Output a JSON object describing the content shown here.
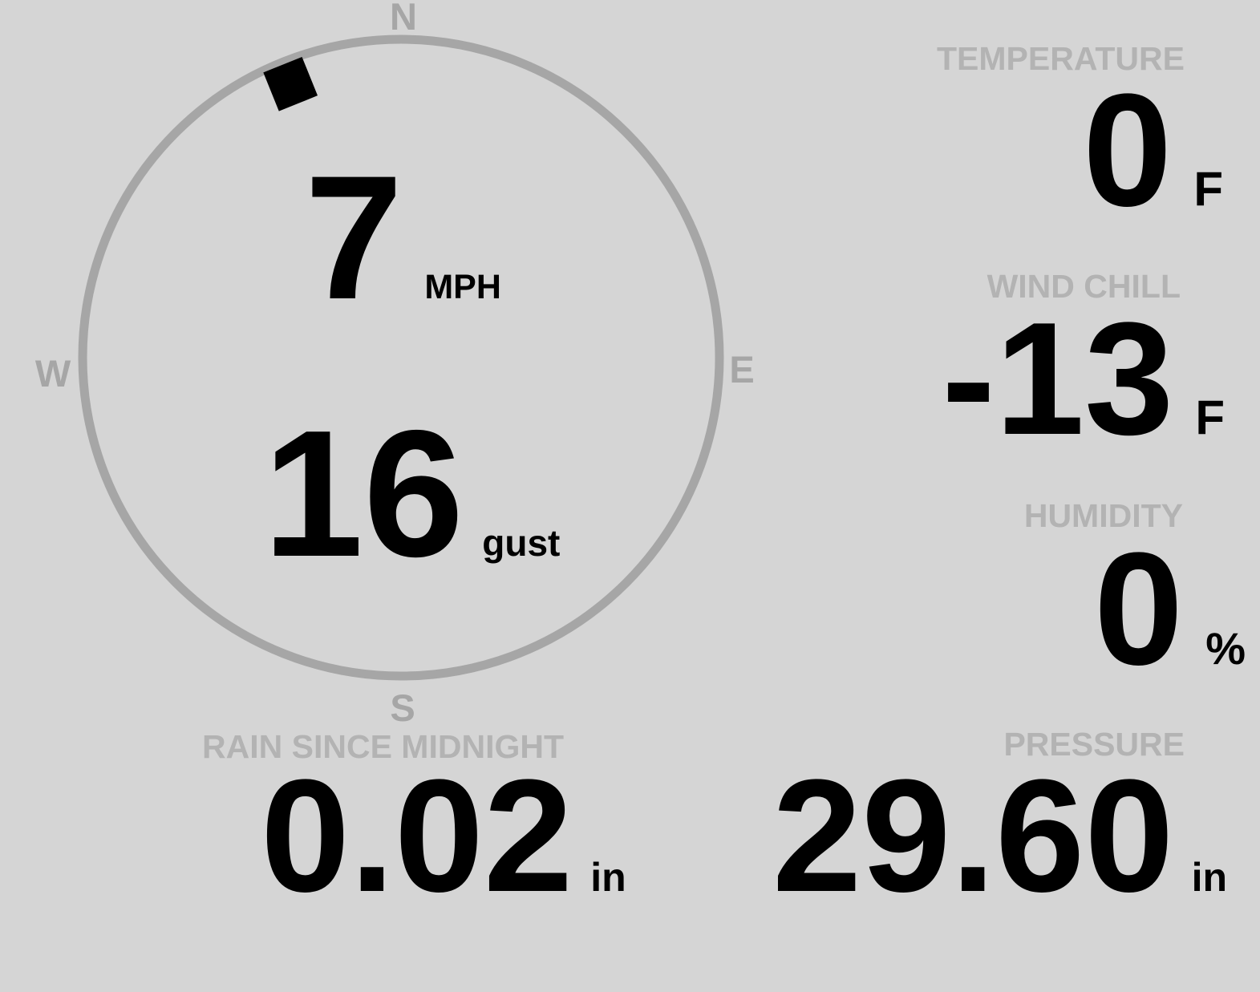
{
  "colors": {
    "background": "#d5d5d5",
    "dial": "#a6a6a6",
    "label": "#b3b3b3",
    "value": "#000000",
    "pointer": "#000000"
  },
  "compass": {
    "cardinals": {
      "north": "N",
      "east": "E",
      "south": "S",
      "west": "W"
    },
    "wind_direction_deg": 338,
    "speed": {
      "value": "7",
      "unit": "MPH"
    },
    "gust": {
      "value": "16",
      "unit": "gust"
    }
  },
  "metrics": {
    "temperature": {
      "label": "TEMPERATURE",
      "value": "0",
      "unit": "F"
    },
    "wind_chill": {
      "label": "WIND CHILL",
      "value": "-13",
      "unit": "F"
    },
    "humidity": {
      "label": "HUMIDITY",
      "value": "0",
      "unit": "%"
    },
    "rain_since_midnight": {
      "label": "RAIN SINCE MIDNIGHT",
      "value": "0.02",
      "unit": "in"
    },
    "pressure": {
      "label": "PRESSURE",
      "value": "29.60",
      "unit": "in"
    }
  }
}
